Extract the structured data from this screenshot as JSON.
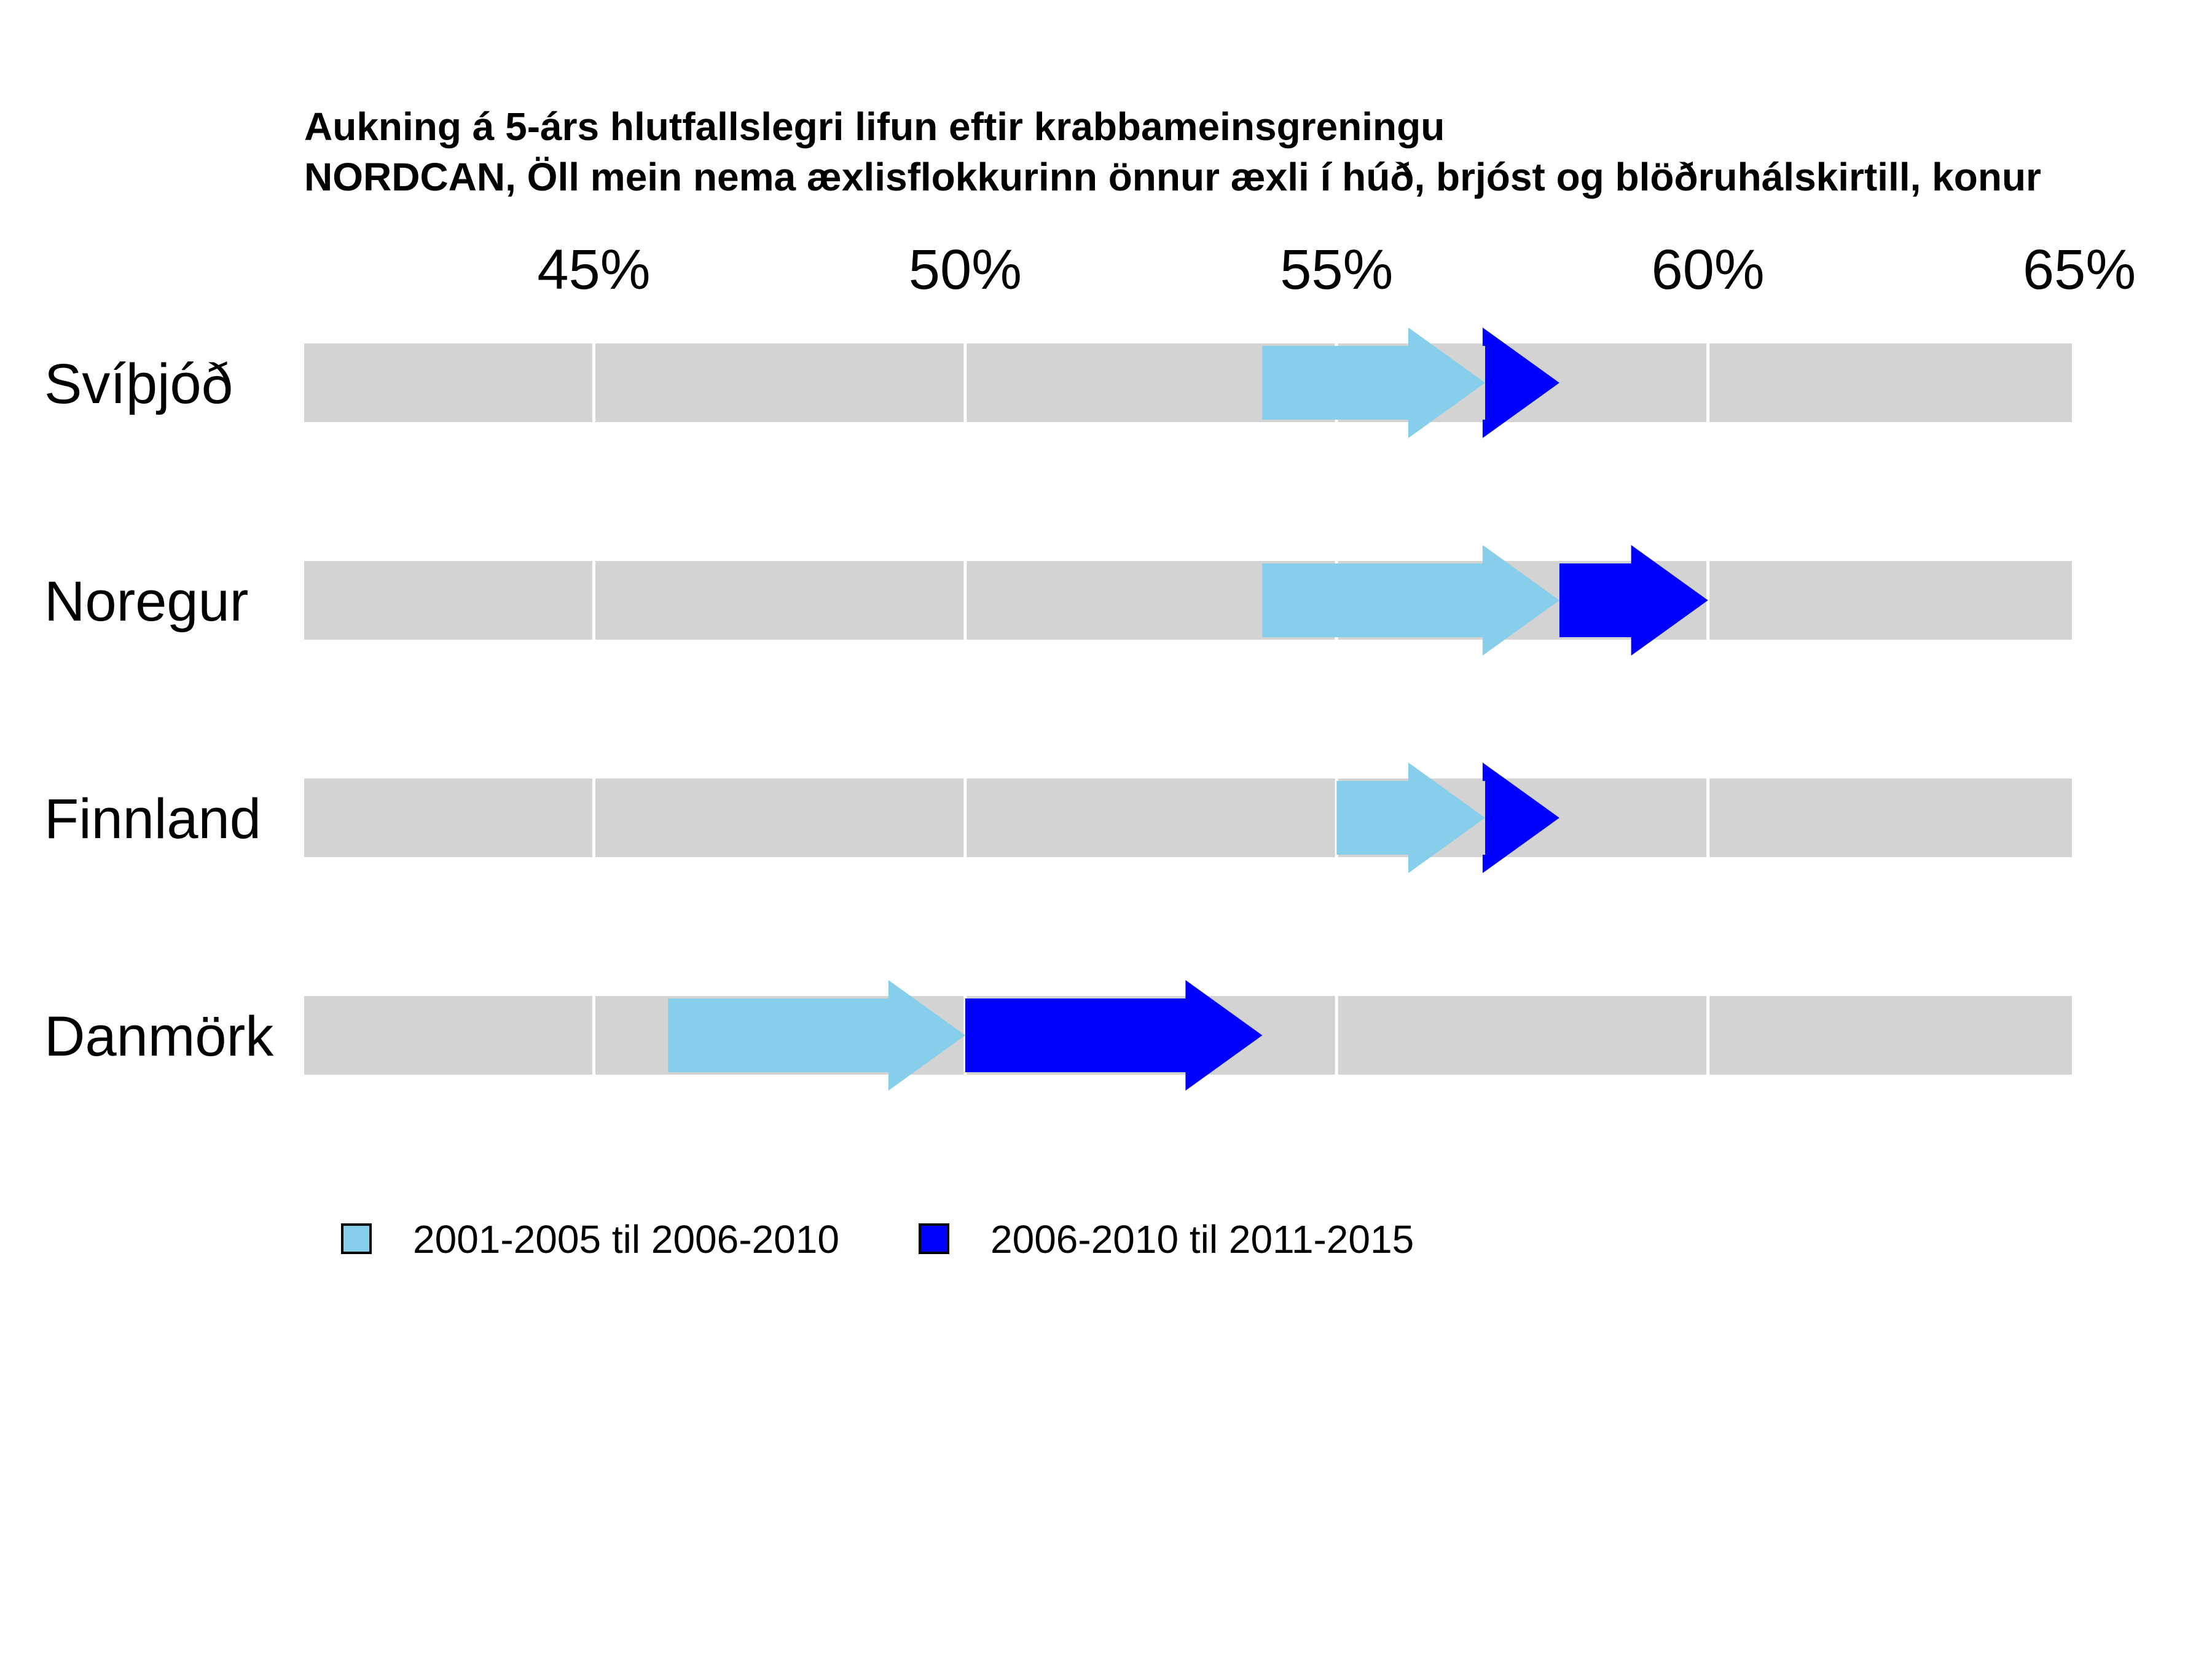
{
  "chart_data": {
    "type": "bar",
    "title": "Aukning á 5-árs hlutfallslegri lifun eftir krabbameinsgreningu",
    "subtitle": "NORDCAN, Öll mein nema æxlisflokkurinn önnur æxli í húð, brjóst og blöðruhálskirtill, konur",
    "xlim": [
      41.1,
      64.9
    ],
    "x_ticks": [
      45,
      50,
      55,
      60,
      65
    ],
    "x_tick_labels": [
      "45%",
      "50%",
      "55%",
      "60%",
      "65%"
    ],
    "grid": true,
    "legend_position": "bottom",
    "categories": [
      "Svíþjóð",
      "Noregur",
      "Finnland",
      "Danmörk"
    ],
    "values": {
      "2001-2005": [
        54,
        54,
        55,
        46
      ],
      "2006-2010": [
        57,
        58,
        57,
        50
      ],
      "2011-2015": [
        58,
        60,
        58,
        54
      ]
    },
    "series": [
      {
        "name": "2001-2005 til 2006-2010",
        "color": "#87CEEB"
      },
      {
        "name": "2006-2010 til 2011-2015",
        "color": "#0000FF"
      }
    ],
    "background_color": "#D3D3D3"
  }
}
